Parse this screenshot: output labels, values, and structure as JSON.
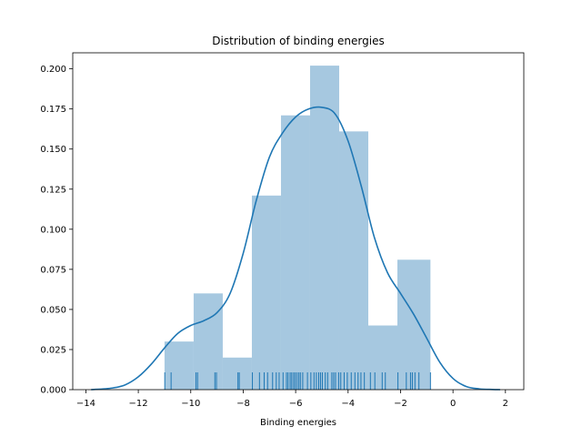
{
  "chart_data": {
    "type": "histogram",
    "title": "Distribution of binding energies",
    "xlabel": "Binding energies",
    "ylabel": "",
    "xlim": [
      -14.5,
      2.7
    ],
    "ylim": [
      0,
      0.21
    ],
    "xticks": [
      -14,
      -12,
      -10,
      -8,
      -6,
      -4,
      -2,
      0,
      2
    ],
    "yticks": [
      0.0,
      0.025,
      0.05,
      0.075,
      0.1,
      0.125,
      0.15,
      0.175,
      0.2
    ],
    "ytick_labels": [
      "0.000",
      "0.025",
      "0.050",
      "0.075",
      "0.100",
      "0.125",
      "0.150",
      "0.175",
      "0.200"
    ],
    "grid": false,
    "bars": [
      {
        "x0": -11.0,
        "x1": -9.89,
        "value": 0.03
      },
      {
        "x0": -9.89,
        "x1": -8.78,
        "value": 0.06
      },
      {
        "x0": -8.78,
        "x1": -7.67,
        "value": 0.02
      },
      {
        "x0": -7.67,
        "x1": -6.56,
        "value": 0.121
      },
      {
        "x0": -6.56,
        "x1": -5.45,
        "value": 0.171
      },
      {
        "x0": -5.45,
        "x1": -4.34,
        "value": 0.202
      },
      {
        "x0": -4.34,
        "x1": -3.23,
        "value": 0.161
      },
      {
        "x0": -3.23,
        "x1": -2.12,
        "value": 0.04
      },
      {
        "x0": -2.12,
        "x1": -0.86,
        "value": 0.081
      }
    ],
    "kde": {
      "x": [
        -13.8,
        -13.0,
        -12.5,
        -12.0,
        -11.5,
        -11.0,
        -10.5,
        -10.0,
        -9.5,
        -9.0,
        -8.5,
        -8.0,
        -7.5,
        -7.0,
        -6.5,
        -6.0,
        -5.5,
        -5.0,
        -4.5,
        -4.0,
        -3.5,
        -3.0,
        -2.5,
        -2.0,
        -1.5,
        -1.0,
        -0.5,
        0.0,
        0.5,
        1.0,
        1.5,
        1.8
      ],
      "y": [
        0.0,
        0.001,
        0.003,
        0.008,
        0.016,
        0.026,
        0.035,
        0.04,
        0.043,
        0.048,
        0.06,
        0.085,
        0.118,
        0.145,
        0.16,
        0.17,
        0.175,
        0.176,
        0.172,
        0.155,
        0.127,
        0.095,
        0.073,
        0.06,
        0.047,
        0.032,
        0.017,
        0.007,
        0.002,
        0.0005,
        0.0001,
        0.0
      ]
    },
    "rug": [
      -10.99,
      -10.75,
      -9.8,
      -9.74,
      -9.08,
      -9.02,
      -8.2,
      -8.15,
      -7.65,
      -7.38,
      -7.2,
      -7.07,
      -6.88,
      -6.74,
      -6.63,
      -6.48,
      -6.35,
      -6.29,
      -6.21,
      -6.15,
      -6.08,
      -6.02,
      -5.95,
      -5.88,
      -5.82,
      -5.73,
      -5.55,
      -5.42,
      -5.3,
      -5.21,
      -5.12,
      -5.05,
      -4.98,
      -4.87,
      -4.78,
      -4.62,
      -4.55,
      -4.48,
      -4.36,
      -4.28,
      -4.15,
      -4.03,
      -3.88,
      -3.74,
      -3.62,
      -3.51,
      -3.38,
      -3.15,
      -2.98,
      -2.7,
      -2.58,
      -2.1,
      -1.78,
      -1.62,
      -1.55,
      -1.45,
      -1.3,
      -0.86
    ],
    "colors": {
      "bar": "#a6c8e0",
      "line": "#1f77b4"
    }
  }
}
